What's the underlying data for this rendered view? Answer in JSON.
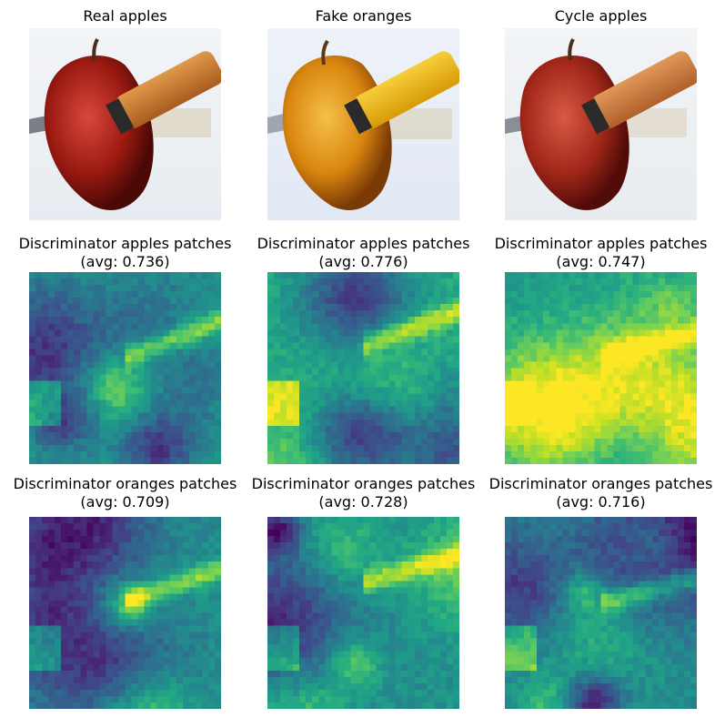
{
  "row1": {
    "titles": [
      "Real apples",
      "Fake oranges",
      "Cycle apples"
    ]
  },
  "row2": {
    "titles": [
      "Discriminator apples patches",
      "Discriminator apples patches",
      "Discriminator apples patches"
    ],
    "avgs": [
      "(avg: 0.736)",
      "(avg: 0.776)",
      "(avg: 0.747)"
    ]
  },
  "row3": {
    "titles": [
      "Discriminator oranges patches",
      "Discriminator oranges patches",
      "Discriminator oranges patches"
    ],
    "avgs": [
      "(avg: 0.709)",
      "(avg: 0.728)",
      "(avg: 0.716)"
    ]
  },
  "colormap": "viridis",
  "photo_colors": {
    "real_apple": "#9b1a12",
    "fake_apple": "#d9860f",
    "cycle_apple": "#a3281a",
    "handle": "#c8782e",
    "fake_handle": "#e8b010"
  },
  "heatmaps": {
    "apples": [
      0.736,
      0.776,
      0.747
    ],
    "oranges": [
      0.709,
      0.728,
      0.716
    ]
  }
}
